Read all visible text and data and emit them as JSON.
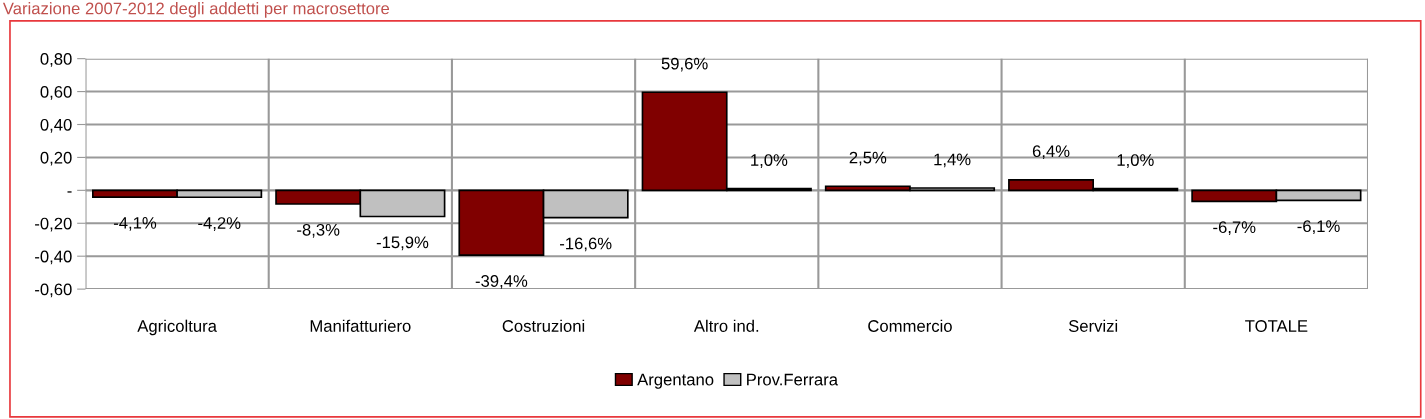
{
  "chart_data": {
    "type": "bar",
    "title": "Variazione 2007-2012 degli addetti per macrosettore",
    "categories": [
      "Agricoltura",
      "Manifatturiero",
      "Costruzioni",
      "Altro ind.",
      "Commercio",
      "Servizi",
      "TOTALE"
    ],
    "series": [
      {
        "name": "Argentano",
        "color": "#800000",
        "values": [
          -0.041,
          -0.083,
          -0.394,
          0.596,
          0.025,
          0.064,
          -0.067
        ],
        "value_labels": [
          "-4,1%",
          "-8,3%",
          "-39,4%",
          "59,6%",
          "2,5%",
          "6,4%",
          "-6,7%"
        ]
      },
      {
        "name": "Prov.Ferrara",
        "color": "#c0c0c0",
        "values": [
          -0.042,
          -0.159,
          -0.166,
          0.01,
          0.014,
          0.01,
          -0.061
        ],
        "value_labels": [
          "-4,2%",
          "-15,9%",
          "-16,6%",
          "1,0%",
          "1,4%",
          "1,0%",
          "-6,1%"
        ]
      }
    ],
    "ylim": [
      -0.6,
      0.8
    ],
    "yticks": [
      {
        "value": -0.6,
        "label": "-0,60"
      },
      {
        "value": -0.4,
        "label": "-0,40"
      },
      {
        "value": -0.2,
        "label": "-0,20"
      },
      {
        "value": 0,
        "label": "-"
      },
      {
        "value": 0.2,
        "label": "0,20"
      },
      {
        "value": 0.4,
        "label": "0,40"
      },
      {
        "value": 0.6,
        "label": "0,60"
      },
      {
        "value": 0.8,
        "label": "0,80"
      }
    ],
    "grid": true,
    "legend": "bottom"
  }
}
